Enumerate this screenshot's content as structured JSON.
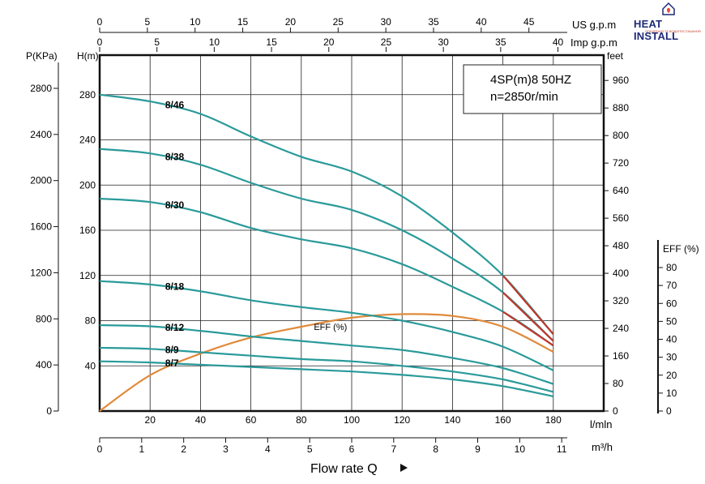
{
  "brand": {
    "name": "HEAT INSTALL",
    "subtitle": "ОПАЛЕННЯ ТА ВОДОПОСТАЧАННЯ"
  },
  "chart_data": {
    "type": "line",
    "model_label": "4SP(m)8  50HZ",
    "speed_label": "n=2850r/min",
    "xlabel": "Flow rate Q",
    "x_unit_lmin": "l/mln",
    "x_unit_m3h": "m³/h",
    "x_unit_us": "US g.p.m",
    "x_unit_imp": "Imp g.p.m",
    "y_label_h": "H(m)",
    "y_label_p": "P(KPa)",
    "y_label_feet": "feet",
    "y_label_eff": "EFF (%)",
    "eff_curve_label": "EFF (%)",
    "xlim_lmin": [
      0,
      200
    ],
    "ylim_h": [
      0,
      315
    ],
    "x_ticks_lmin": [
      20,
      40,
      60,
      80,
      100,
      120,
      140,
      160,
      180
    ],
    "x_ticks_m3h": [
      0,
      1,
      2,
      3,
      4,
      5,
      6,
      7,
      8,
      9,
      10,
      11
    ],
    "x_ticks_us": [
      0,
      5,
      10,
      15,
      20,
      25,
      30,
      35,
      40,
      45
    ],
    "x_ticks_imp": [
      0,
      5,
      10,
      15,
      20,
      25,
      30,
      35,
      40
    ],
    "y_ticks_h": [
      40,
      80,
      120,
      160,
      200,
      240,
      280
    ],
    "y_ticks_p": [
      0,
      400,
      800,
      1200,
      1600,
      2000,
      2400,
      2800
    ],
    "y_ticks_feet": [
      0,
      80,
      160,
      240,
      320,
      400,
      480,
      560,
      640,
      720,
      800,
      880,
      960
    ],
    "y_ticks_eff": [
      0,
      10,
      20,
      30,
      40,
      50,
      60,
      70,
      80
    ],
    "grid": true,
    "series": [
      {
        "name": "8/46",
        "x": [
          0,
          20,
          40,
          60,
          80,
          100,
          120,
          140,
          160,
          180
        ],
        "y": [
          280,
          274,
          263,
          243,
          225,
          212,
          190,
          158,
          120,
          68
        ]
      },
      {
        "name": "8/38",
        "x": [
          0,
          20,
          40,
          60,
          80,
          100,
          120,
          140,
          160,
          180
        ],
        "y": [
          232,
          228,
          218,
          202,
          188,
          178,
          160,
          135,
          105,
          62
        ]
      },
      {
        "name": "8/30",
        "x": [
          0,
          20,
          40,
          60,
          80,
          100,
          120,
          140,
          160,
          180
        ],
        "y": [
          188,
          185,
          176,
          162,
          152,
          144,
          130,
          110,
          88,
          58
        ]
      },
      {
        "name": "8/18",
        "x": [
          0,
          20,
          40,
          60,
          80,
          100,
          120,
          140,
          160,
          180
        ],
        "y": [
          115,
          112,
          106,
          98,
          92,
          87,
          80,
          70,
          57,
          36
        ]
      },
      {
        "name": "8/12",
        "x": [
          0,
          20,
          40,
          60,
          80,
          100,
          120,
          140,
          160,
          180
        ],
        "y": [
          76,
          75,
          71,
          66,
          62,
          58,
          54,
          47,
          38,
          24
        ]
      },
      {
        "name": "8/9",
        "x": [
          0,
          20,
          40,
          60,
          80,
          100,
          120,
          140,
          160,
          180
        ],
        "y": [
          56,
          55,
          52,
          49,
          46,
          44,
          40,
          35,
          28,
          17
        ]
      },
      {
        "name": "8/7",
        "x": [
          0,
          20,
          40,
          60,
          80,
          100,
          120,
          140,
          160,
          180
        ],
        "y": [
          44,
          43,
          41,
          39,
          37,
          35,
          32,
          28,
          22,
          13
        ]
      }
    ],
    "efficiency": {
      "x": [
        0,
        20,
        40,
        60,
        80,
        100,
        120,
        140,
        160,
        180
      ],
      "y": [
        0,
        20,
        32,
        41,
        47,
        52,
        54,
        53,
        47,
        33
      ]
    },
    "colors": {
      "curve": "#2a9a9a",
      "eff": "#e08a3a",
      "overload": "#c0392b",
      "grid": "#222222"
    }
  }
}
